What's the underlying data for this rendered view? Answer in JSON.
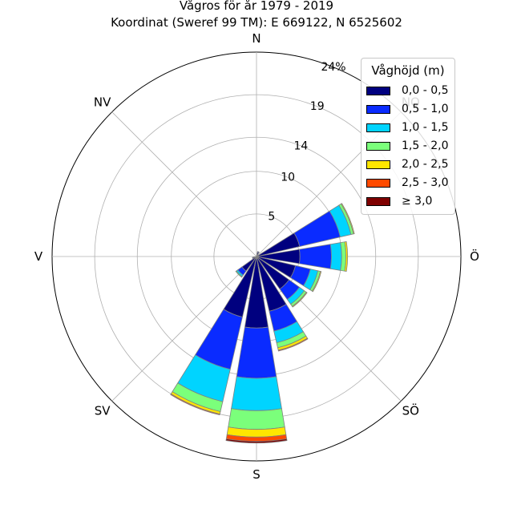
{
  "title": [
    "Vågros för år 1979 - 2019",
    "Koordinat (Sweref 99 TM): E 669122, N 6525602"
  ],
  "chart_data": {
    "type": "polar-stacked-bar",
    "radial_max": 24,
    "radial_ticks": [
      5,
      10,
      14,
      19,
      24
    ],
    "radial_tick_labels": [
      "5",
      "10",
      "14",
      "19",
      "24%"
    ],
    "directions": [
      {
        "label": "N",
        "deg": 0
      },
      {
        "label": "NV",
        "deg": 315
      },
      {
        "label": "V",
        "deg": 270
      },
      {
        "label": "SV",
        "deg": 225
      },
      {
        "label": "S",
        "deg": 180
      },
      {
        "label": "SÖ",
        "deg": 135
      },
      {
        "label": "Ö",
        "deg": 90
      },
      {
        "label": "NO",
        "deg": 45
      }
    ],
    "legend_title": "Våghöjd (m)",
    "legend": [
      {
        "label": "0,0 - 0,5",
        "color": "#00007f"
      },
      {
        "label": "0,5 - 1,0",
        "color": "#0a2bff"
      },
      {
        "label": "1,0 - 1,5",
        "color": "#00d4ff"
      },
      {
        "label": "1,5 - 2,0",
        "color": "#7bff7b"
      },
      {
        "label": "2,0 - 2,5",
        "color": "#ffe600"
      },
      {
        "label": "2,5 - 3,0",
        "color": "#ff4a00"
      },
      {
        "label": "≥ 3,0",
        "color": "#7f0000"
      }
    ],
    "sectors": [
      {
        "deg": 22.5,
        "values": [
          0.5,
          0.1,
          0,
          0,
          0,
          0,
          0
        ]
      },
      {
        "deg": 67.5,
        "values": [
          5.2,
          4.9,
          1.3,
          0.3,
          0.1,
          0,
          0
        ]
      },
      {
        "deg": 90,
        "values": [
          5.1,
          3.7,
          1.2,
          0.5,
          0.2,
          0,
          0
        ]
      },
      {
        "deg": 112.5,
        "values": [
          4.7,
          1.8,
          0.9,
          0.3,
          0.1,
          0,
          0
        ]
      },
      {
        "deg": 135,
        "values": [
          4.7,
          1.5,
          0.7,
          0.3,
          0.1,
          0,
          0
        ]
      },
      {
        "deg": 157.5,
        "values": [
          6.6,
          2.4,
          1.4,
          0.6,
          0.3,
          0.1,
          0
        ]
      },
      {
        "deg": 180,
        "values": [
          8.4,
          5.9,
          3.8,
          2.2,
          0.9,
          0.5,
          0.2
        ]
      },
      {
        "deg": 202.5,
        "values": [
          7.3,
          6.3,
          3.9,
          1.2,
          0.3,
          0.1,
          0
        ]
      },
      {
        "deg": 225,
        "values": [
          2.1,
          0.6,
          0.2,
          0.1,
          0,
          0,
          0
        ]
      },
      {
        "deg": 247.5,
        "values": [
          0.4,
          0.1,
          0,
          0,
          0,
          0,
          0
        ]
      }
    ]
  }
}
